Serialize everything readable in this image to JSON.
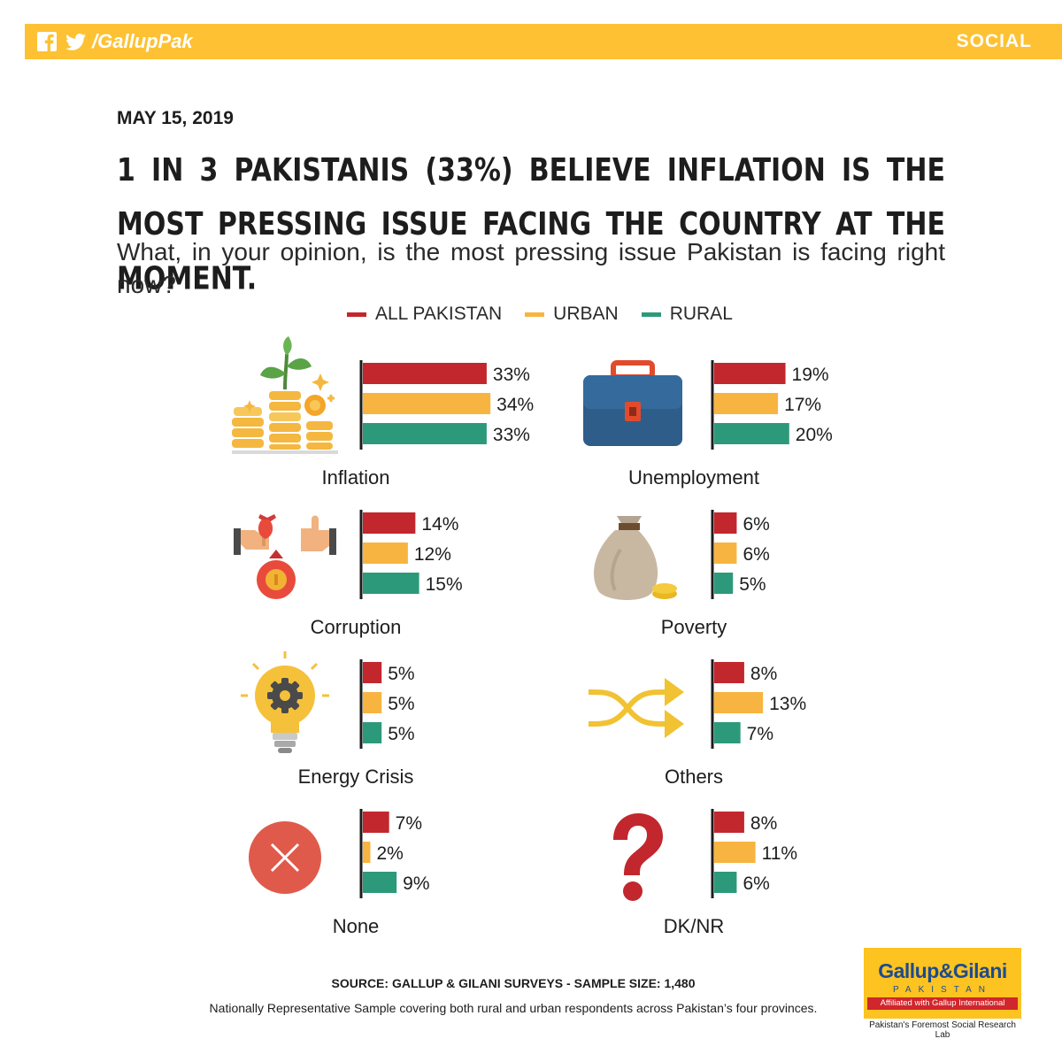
{
  "header": {
    "handle": "/GallupPak",
    "section": "SOCIAL"
  },
  "date": "MAY 15, 2019",
  "headline": "1 IN 3 PAKISTANIS (33%) BELIEVE INFLATION IS THE MOST PRESSING ISSUE FACING THE COUNTRY AT THE MOMENT.",
  "question": "What, in your opinion, is the most pressing issue Pakistan is facing right now?",
  "colors": {
    "header": "#fdc133",
    "all_pakistan": "#c1272d",
    "urban": "#f8b440",
    "rural": "#2c9a7a"
  },
  "chart_data": {
    "type": "bar",
    "orientation": "horizontal",
    "legend_position": "top",
    "series_names": [
      "ALL PAKISTAN",
      "URBAN",
      "RURAL"
    ],
    "categories": [
      {
        "name": "Inflation",
        "icon": "coins-plant-icon",
        "values": [
          33,
          34,
          33
        ],
        "labels": [
          "33%",
          "34%",
          "33%"
        ]
      },
      {
        "name": "Unemployment",
        "icon": "briefcase-icon",
        "values": [
          19,
          17,
          20
        ],
        "labels": [
          "19%",
          "17%",
          "20%"
        ]
      },
      {
        "name": "Corruption",
        "icon": "bribe-handshake-icon",
        "values": [
          14,
          12,
          15
        ],
        "labels": [
          "14%",
          "12%",
          "15%"
        ]
      },
      {
        "name": "Poverty",
        "icon": "money-sack-icon",
        "values": [
          6,
          6,
          5
        ],
        "labels": [
          "6%",
          "6%",
          "5%"
        ]
      },
      {
        "name": "Energy Crisis",
        "icon": "lightbulb-gear-icon",
        "values": [
          5,
          5,
          5
        ],
        "labels": [
          "5%",
          "5%",
          "5%"
        ]
      },
      {
        "name": "Others",
        "icon": "shuffle-arrows-icon",
        "values": [
          8,
          13,
          7
        ],
        "labels": [
          "8%",
          "13%",
          "7%"
        ]
      },
      {
        "name": "None",
        "icon": "cross-circle-icon",
        "values": [
          7,
          2,
          9
        ],
        "labels": [
          "7%",
          "2%",
          "9%"
        ]
      },
      {
        "name": "DK/NR",
        "icon": "question-mark-icon",
        "values": [
          8,
          11,
          6
        ],
        "labels": [
          "8%",
          "11%",
          "6%"
        ]
      }
    ]
  },
  "footer": {
    "source": "SOURCE: GALLUP & GILANI SURVEYS - SAMPLE SIZE: 1,480",
    "note": "Nationally Representative Sample covering both rural and urban respondents across Pakistan’s four provinces."
  },
  "logo": {
    "brand": "Gallup&Gilani",
    "country": "PAKISTAN",
    "affiliation": "Affiliated with Gallup International",
    "tagline": "Pakistan's Foremost Social Research Lab"
  }
}
